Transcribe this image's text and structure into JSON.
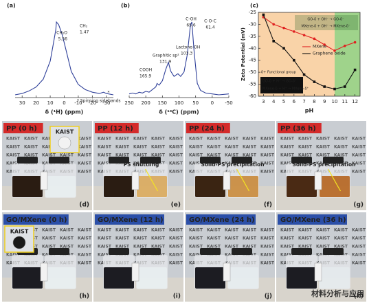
{
  "chart_data": [
    {
      "type": "line",
      "label": "(a)",
      "xlabel": "δ (¹H) (ppm)",
      "color": "#2e3f99",
      "xlim": [
        35,
        -35
      ],
      "xticks": [
        30,
        20,
        10,
        0,
        -10,
        -20,
        -30
      ],
      "x": [
        35,
        30,
        25,
        20,
        15,
        10,
        8,
        6,
        5.56,
        4,
        2,
        1.47,
        0,
        -5,
        -10,
        -15,
        -20,
        -25,
        -28,
        -30,
        -35
      ],
      "values": [
        2,
        3,
        5,
        8,
        14,
        28,
        40,
        52,
        58,
        56,
        50,
        48,
        42,
        20,
        10,
        6,
        4,
        3,
        4,
        3,
        2
      ],
      "annotations": [
        "CH₂O",
        "5.56",
        "CH₂",
        "1.47",
        "*",
        "* Spinning sidebands"
      ]
    },
    {
      "type": "line",
      "label": "(b)",
      "xlabel": "δ (¹³C) (ppm)",
      "color": "#2e3f99",
      "xlim": [
        250,
        -50
      ],
      "xticks": [
        250,
        200,
        150,
        100,
        50,
        0,
        -50
      ],
      "x": [
        250,
        240,
        230,
        220,
        210,
        200,
        190,
        180,
        170,
        165.9,
        160,
        150,
        140,
        131.9,
        125,
        115,
        103.3,
        95,
        85,
        75,
        65.6,
        61.4,
        55,
        45,
        35,
        20,
        0,
        -20,
        -50
      ],
      "values": [
        10,
        11,
        10,
        12,
        11,
        13,
        12,
        15,
        18,
        22,
        20,
        25,
        38,
        46,
        36,
        30,
        33,
        30,
        35,
        55,
        88,
        92,
        60,
        22,
        14,
        11,
        10,
        9,
        10
      ],
      "annotations": [
        "COOH",
        "165.9",
        "Graphitic sp²",
        "131.9",
        "Lactone-OH",
        "103.3",
        "C-OH",
        "65.6",
        "C-O-C",
        "61.4"
      ]
    },
    {
      "type": "line",
      "label": "(c)",
      "xlabel": "pH",
      "ylabel": "Zeta Potential (mV)",
      "xlim": [
        2.5,
        12.5
      ],
      "xticks": [
        3,
        4,
        5,
        6,
        7,
        8,
        9,
        10,
        11,
        12
      ],
      "ylim": [
        -60,
        -25
      ],
      "yticks": [
        -60,
        -55,
        -50,
        -45,
        -40,
        -35,
        -30,
        -25
      ],
      "x": [
        3,
        4,
        5,
        6,
        7,
        8,
        9,
        10,
        11,
        12
      ],
      "regions": [
        {
          "x": [
            2.5,
            10
          ],
          "color": "#f9d3a8"
        },
        {
          "x": [
            10,
            12.5
          ],
          "color": "#9fd38b"
        }
      ],
      "series": [
        {
          "name": "MXene",
          "color": "#e02020",
          "values": [
            -27,
            -30,
            -31.5,
            -33,
            -34.5,
            -36,
            -38.5,
            -41,
            -39,
            -37.5
          ]
        },
        {
          "name": "Graphene oxide",
          "color": "#111111",
          "values": [
            -26,
            -37,
            -40,
            -45,
            -51,
            -54,
            -56,
            -57,
            -56,
            -49
          ]
        }
      ],
      "annotations": [
        "GO-δ + OH⁻ → GO-δ⁻",
        "MXene-δ + OH⁻ → MXene-δ⁻",
        "δ+ Functional group",
        "GO-δ + H⁺ → GO-δ⁺",
        "MXene-δ + H⁺ → MXene-δ⁺"
      ]
    }
  ],
  "photo_background_text": "KAIST",
  "photos": [
    {
      "title": "PP (0 h)",
      "letter": "(d)",
      "badge_color": "#d42a2a",
      "left_liquid": "#2a1c12",
      "right_liquid": "#e8eef0",
      "inset": "KAIST",
      "annotations": []
    },
    {
      "title": "PP (12 h)",
      "letter": "(e)",
      "badge_color": "#d42a2a",
      "left_liquid": "#2a1c12",
      "right_liquid": "#d9a85a",
      "annotations": [
        "PS shuttling"
      ]
    },
    {
      "title": "PP (24 h)",
      "letter": "(f)",
      "badge_color": "#d42a2a",
      "left_liquid": "#3a2412",
      "right_liquid": "#c98a3a",
      "annotations": [
        "Solid-PS precipitation"
      ]
    },
    {
      "title": "PP (36 h)",
      "letter": "(g)",
      "badge_color": "#d42a2a",
      "left_liquid": "#4a2a14",
      "right_liquid": "#b5641e",
      "annotations": [
        "Solid-PS precipitation"
      ]
    },
    {
      "title": "GO/MXene (0 h)",
      "letter": "(h)",
      "badge_color": "#2b4fa8",
      "left_liquid": "#1c1c22",
      "right_liquid": "#e8eef0",
      "inset": "KAIST",
      "annotations": []
    },
    {
      "title": "GO/MXene (12 h)",
      "letter": "(i)",
      "badge_color": "#2b4fa8",
      "left_liquid": "#1c1c22",
      "right_liquid": "#e8eef0",
      "annotations": []
    },
    {
      "title": "GO/MXene (24 h)",
      "letter": "(j)",
      "badge_color": "#2b4fa8",
      "left_liquid": "#1c1c22",
      "right_liquid": "#e6ecee",
      "annotations": []
    },
    {
      "title": "GO/MXene (36 h)",
      "letter": "(k)",
      "badge_color": "#2b4fa8",
      "left_liquid": "#1c1c22",
      "right_liquid": "#e4eaec",
      "annotations": []
    }
  ],
  "watermark": "材料分析与应用"
}
